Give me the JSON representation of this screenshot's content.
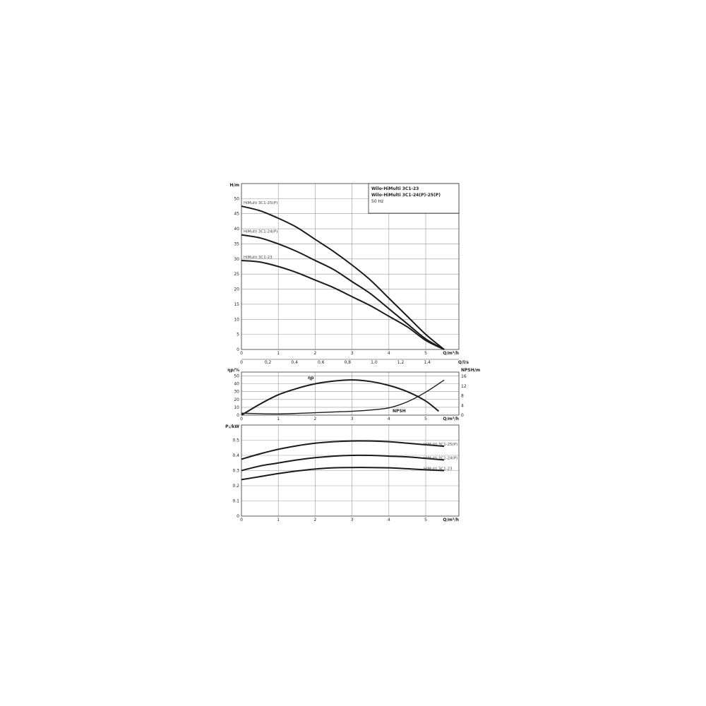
{
  "legend_box": {
    "line1": "Wilo-HiMulti 3C1-23",
    "line2": "Wilo-HiMulti 3C1-24(P)-25(P)",
    "frequency": "50 Hz"
  },
  "chart_data": [
    {
      "type": "line",
      "id": "head",
      "ylabel": "H/m",
      "xlabel": "Q/m³/h",
      "x2label": "Q/l/s",
      "xlim": [
        0,
        5.9
      ],
      "ylim": [
        0,
        55
      ],
      "xticks": [
        0,
        1,
        2,
        3,
        4,
        5
      ],
      "x2ticks": [
        "0",
        "0,2",
        "0,4",
        "0,6",
        "0,8",
        "1,0",
        "1,2",
        "1,4"
      ],
      "yticks": [
        0,
        5,
        10,
        15,
        20,
        25,
        30,
        35,
        40,
        45,
        50
      ],
      "grid": true,
      "series": [
        {
          "name": "HiMulti 3C1-25(P)",
          "x": [
            0,
            0.5,
            1,
            1.5,
            2,
            2.5,
            3,
            3.5,
            4,
            4.5,
            5,
            5.5
          ],
          "y": [
            47.5,
            46,
            43.5,
            40.5,
            36.5,
            32.5,
            28,
            23,
            17,
            11,
            5,
            0
          ]
        },
        {
          "name": "HiMulti 3C1-24(P)",
          "x": [
            0,
            0.5,
            1,
            1.5,
            2,
            2.5,
            3,
            3.5,
            4,
            4.5,
            5,
            5.5
          ],
          "y": [
            38,
            37,
            35,
            32.5,
            29.5,
            26.5,
            22.5,
            18.5,
            13.5,
            8.5,
            3.5,
            0
          ]
        },
        {
          "name": "HiMulti 3C1-23",
          "x": [
            0,
            0.5,
            1,
            1.5,
            2,
            2.5,
            3,
            3.5,
            4,
            4.5,
            5,
            5.5
          ],
          "y": [
            29.5,
            29,
            27.5,
            25.5,
            23,
            20.5,
            17.5,
            14.5,
            11,
            7.5,
            3,
            0
          ]
        }
      ]
    },
    {
      "type": "line",
      "id": "eff",
      "ylabel": "ηp/%",
      "y2label": "NPSH/m",
      "xlabel": "Q/m³/h",
      "xlim": [
        0,
        5.9
      ],
      "ylim": [
        0,
        55
      ],
      "y2lim": [
        0,
        17.8
      ],
      "xticks": [
        0,
        1,
        2,
        3,
        4,
        5
      ],
      "yticks": [
        0,
        10,
        20,
        30,
        40,
        50
      ],
      "y2ticks": [
        0,
        4,
        8,
        12,
        16
      ],
      "grid": true,
      "series": [
        {
          "name": "ηp",
          "axis": "left",
          "x": [
            0,
            0.5,
            1,
            1.5,
            2,
            2.5,
            3,
            3.5,
            4,
            4.5,
            5,
            5.35
          ],
          "y": [
            0,
            14,
            26,
            34,
            40,
            43.5,
            45,
            43,
            38,
            30,
            18,
            5
          ]
        },
        {
          "name": "NPSH",
          "axis": "right",
          "x": [
            0,
            0.5,
            1,
            1.5,
            2,
            2.5,
            3,
            3.5,
            4,
            4.5,
            5,
            5.5
          ],
          "y": [
            0.8,
            0.6,
            0.5,
            0.7,
            1,
            1.3,
            1.6,
            2.1,
            3,
            5.5,
            9.5,
            14.5
          ]
        }
      ]
    },
    {
      "type": "line",
      "id": "power",
      "ylabel": "P₁/kW",
      "xlabel": "Q/m³/h",
      "xlim": [
        0,
        5.9
      ],
      "ylim": [
        0,
        0.6
      ],
      "xticks": [
        0,
        1,
        2,
        3,
        4,
        5
      ],
      "yticks": [
        0,
        0.1,
        0.2,
        0.3,
        0.4,
        0.5
      ],
      "grid": true,
      "series": [
        {
          "name": "HiMulti 3C1-25(P)",
          "x": [
            0,
            0.5,
            1,
            1.5,
            2,
            2.5,
            3,
            3.5,
            4,
            4.5,
            5,
            5.5
          ],
          "y": [
            0.375,
            0.41,
            0.44,
            0.463,
            0.48,
            0.49,
            0.495,
            0.495,
            0.49,
            0.48,
            0.47,
            0.46
          ]
        },
        {
          "name": "HiMulti 3C1-24(P)",
          "x": [
            0,
            0.5,
            1,
            1.5,
            2,
            2.5,
            3,
            3.5,
            4,
            4.5,
            5,
            5.5
          ],
          "y": [
            0.3,
            0.33,
            0.35,
            0.37,
            0.385,
            0.395,
            0.4,
            0.4,
            0.395,
            0.39,
            0.38,
            0.37
          ]
        },
        {
          "name": "HiMulti 3C1-23",
          "x": [
            0,
            0.5,
            1,
            1.5,
            2,
            2.5,
            3,
            3.5,
            4,
            4.5,
            5,
            5.5
          ],
          "y": [
            0.24,
            0.26,
            0.28,
            0.297,
            0.31,
            0.318,
            0.32,
            0.32,
            0.318,
            0.312,
            0.305,
            0.3
          ]
        }
      ]
    }
  ]
}
